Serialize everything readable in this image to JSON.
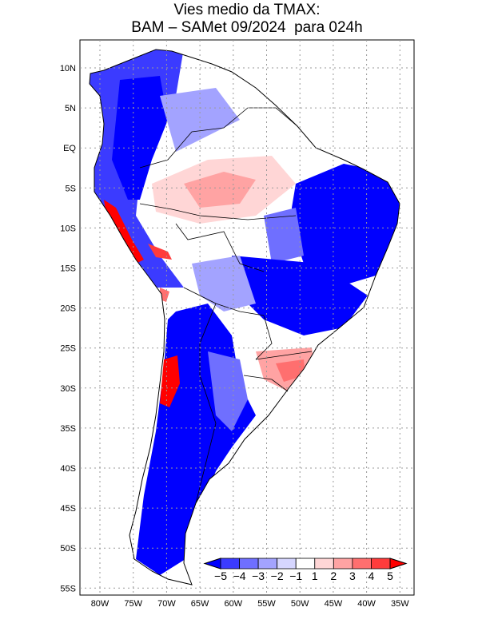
{
  "title": {
    "line1": "Vies medio da TMAX:",
    "line2": "BAM – SAMet 09/2024  para 024h"
  },
  "axes": {
    "lon_labels": [
      "80W",
      "75W",
      "70W",
      "65W",
      "60W",
      "55W",
      "50W",
      "45W",
      "40W",
      "35W"
    ],
    "lat_labels": [
      "10N",
      "5N",
      "EQ",
      "5S",
      "10S",
      "15S",
      "20S",
      "25S",
      "30S",
      "35S",
      "40S",
      "45S",
      "50S",
      "55S"
    ]
  },
  "colorbar": {
    "labels": [
      "−5",
      "−4",
      "−3",
      "−2",
      "−1",
      "1",
      "2",
      "3",
      "4",
      "5"
    ],
    "colors": [
      "#0000ff",
      "#3b3bff",
      "#6f6fff",
      "#a3a3ff",
      "#d6d6ff",
      "#ffffff",
      "#ffd6d6",
      "#ffa3a3",
      "#ff6f6f",
      "#ff3b3b",
      "#ff0000"
    ]
  }
}
